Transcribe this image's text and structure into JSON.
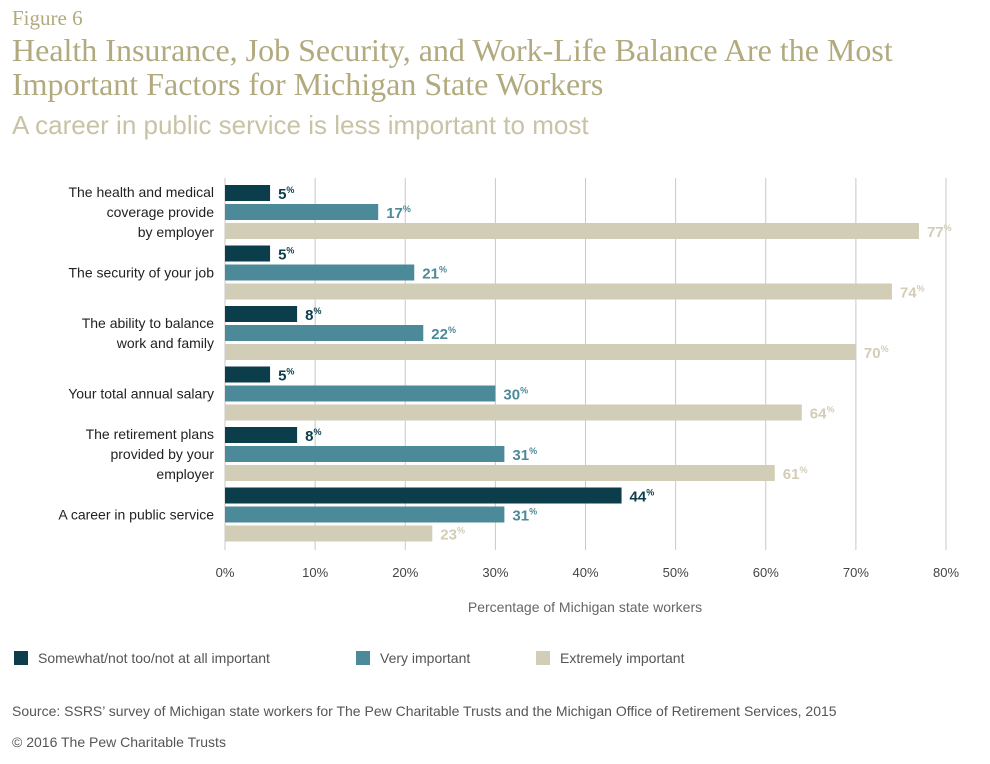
{
  "figure_label": "Figure 6",
  "title": "Health Insurance, Job Security, and Work-Life Balance Are the Most Important Factors for Michigan State Workers",
  "subtitle": "A career in public service is less important to most",
  "source": "Source: SSRS’ survey of Michigan state workers for The Pew Charitable Trusts and the Michigan Office of Retirement Services, 2015",
  "copyright": "© 2016 The Pew Charitable Trusts",
  "colors": {
    "title": "#b2aa7f",
    "somewhat": "#0b3d4b",
    "very": "#4d8a99",
    "extremely": "#d2cdb6",
    "grid": "#c8c8c8"
  },
  "chart_data": {
    "type": "bar",
    "orientation": "horizontal",
    "xlabel": "Percentage of Michigan state workers",
    "xlim": [
      0,
      80
    ],
    "xticks": [
      "0%",
      "10%",
      "20%",
      "30%",
      "40%",
      "50%",
      "60%",
      "70%",
      "80%"
    ],
    "grid": true,
    "legend_position": "bottom",
    "categories": [
      [
        "The health and medical",
        "coverage provide",
        "by employer"
      ],
      [
        "The security of your job"
      ],
      [
        "The ability to balance",
        "work and family"
      ],
      [
        "Your total annual salary"
      ],
      [
        "The retirement plans",
        "provided by your",
        "employer"
      ],
      [
        "A career in public service"
      ]
    ],
    "series": [
      {
        "name": "Somewhat/not too/not at all important",
        "color": "#0b3d4b",
        "values": [
          5,
          5,
          8,
          5,
          8,
          44
        ]
      },
      {
        "name": "Very important",
        "color": "#4d8a99",
        "values": [
          17,
          21,
          22,
          30,
          31,
          31
        ]
      },
      {
        "name": "Extremely important",
        "color": "#d2cdb6",
        "values": [
          77,
          74,
          70,
          64,
          61,
          23
        ]
      }
    ],
    "value_suffix": "%"
  }
}
